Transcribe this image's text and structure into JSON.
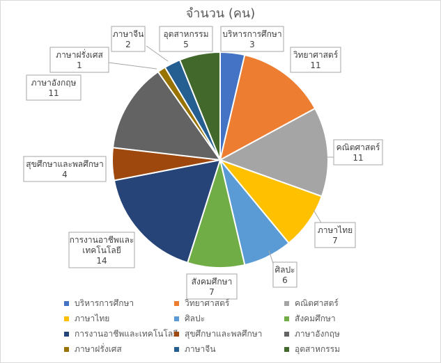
{
  "chart_data": {
    "type": "pie",
    "title": "จำนวน (คน)",
    "categories": [
      "บริหารการศึกษา",
      "วิทยาศาสตร์",
      "คณิตศาสตร์",
      "ภาษาไทย",
      "ศิลปะ",
      "สังคมศึกษา",
      "การงานอาชีพและเทคโนโลยี",
      "สุขศึกษาและพลศึกษา",
      "ภาษาอังกฤษ",
      "ภาษาฝรั่งเศส",
      "ภาษาจีน",
      "อุตสาหกรรม"
    ],
    "values": [
      3,
      11,
      11,
      7,
      6,
      7,
      14,
      4,
      11,
      1,
      2,
      5
    ],
    "colors": [
      "#4472C4",
      "#ED7D31",
      "#A5A5A5",
      "#FFC000",
      "#5B9BD5",
      "#70AD47",
      "#264478",
      "#9E480E",
      "#636363",
      "#997300",
      "#255E91",
      "#43682B"
    ],
    "data_labels_show": [
      "name",
      "value"
    ],
    "legend_position": "bottom"
  }
}
